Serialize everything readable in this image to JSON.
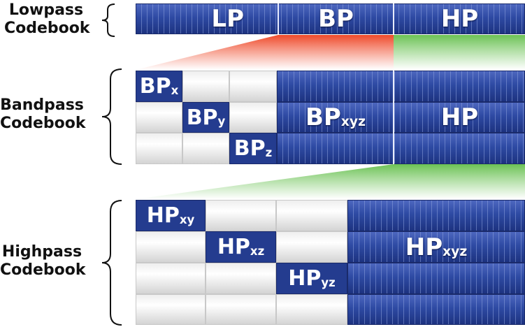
{
  "codebooks": {
    "lowpass": {
      "line1": "Lowpass",
      "line2": "Codebook"
    },
    "bandpass": {
      "line1": "Bandpass",
      "line2": "Codebook"
    },
    "highpass": {
      "line1": "Highpass",
      "line2": "Codebook"
    }
  },
  "lowpass_row": {
    "lp": "LP",
    "bp": "BP",
    "hp": "HP"
  },
  "bandpass_block": {
    "bpx": {
      "main": "BP",
      "sub": "x"
    },
    "bpy": {
      "main": "BP",
      "sub": "y"
    },
    "bpz": {
      "main": "BP",
      "sub": "z"
    },
    "bpxyz": {
      "main": "BP",
      "sub": "xyz"
    },
    "hp": "HP"
  },
  "highpass_block": {
    "hpxy": {
      "main": "HP",
      "sub": "xy"
    },
    "hpxz": {
      "main": "HP",
      "sub": "xz"
    },
    "hpyz": {
      "main": "HP",
      "sub": "yz"
    },
    "hpxyz": {
      "main": "HP",
      "sub": "xyz"
    }
  },
  "colors": {
    "blue": "#243c8f",
    "red_wedge": "#f05a3a",
    "green_wedge": "#7cc86a"
  }
}
